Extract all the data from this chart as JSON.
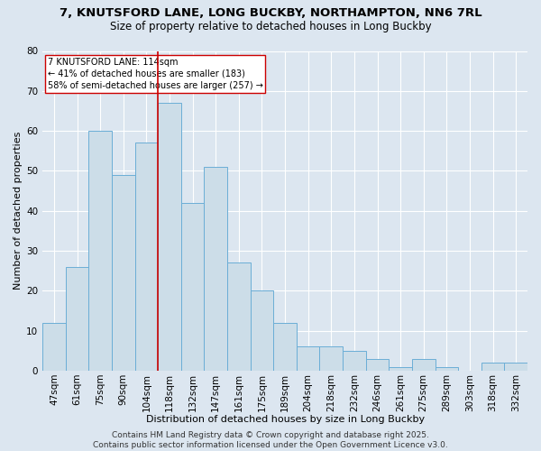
{
  "title_line1": "7, KNUTSFORD LANE, LONG BUCKBY, NORTHAMPTON, NN6 7RL",
  "title_line2": "Size of property relative to detached houses in Long Buckby",
  "xlabel": "Distribution of detached houses by size in Long Buckby",
  "ylabel": "Number of detached properties",
  "bar_labels": [
    "47sqm",
    "61sqm",
    "75sqm",
    "90sqm",
    "104sqm",
    "118sqm",
    "132sqm",
    "147sqm",
    "161sqm",
    "175sqm",
    "189sqm",
    "204sqm",
    "218sqm",
    "232sqm",
    "246sqm",
    "261sqm",
    "275sqm",
    "289sqm",
    "303sqm",
    "318sqm",
    "332sqm"
  ],
  "bar_heights": [
    12,
    26,
    60,
    49,
    57,
    67,
    42,
    51,
    27,
    20,
    12,
    6,
    6,
    5,
    3,
    1,
    3,
    1,
    0,
    2,
    2
  ],
  "bar_color": "#ccdde8",
  "bar_edge_color": "#6baed6",
  "red_line_index": 5,
  "red_line_color": "#cc0000",
  "annotation_text": "7 KNUTSFORD LANE: 114sqm\n← 41% of detached houses are smaller (183)\n58% of semi-detached houses are larger (257) →",
  "annotation_box_color": "#ffffff",
  "annotation_box_edge": "#cc0000",
  "ylim": [
    0,
    80
  ],
  "yticks": [
    0,
    10,
    20,
    30,
    40,
    50,
    60,
    70,
    80
  ],
  "background_color": "#dce6f0",
  "grid_color": "#ffffff",
  "footer_text": "Contains HM Land Registry data © Crown copyright and database right 2025.\nContains public sector information licensed under the Open Government Licence v3.0.",
  "title_fontsize": 9.5,
  "subtitle_fontsize": 8.5,
  "axis_label_fontsize": 8,
  "tick_fontsize": 7.5,
  "annotation_fontsize": 7,
  "footer_fontsize": 6.5
}
